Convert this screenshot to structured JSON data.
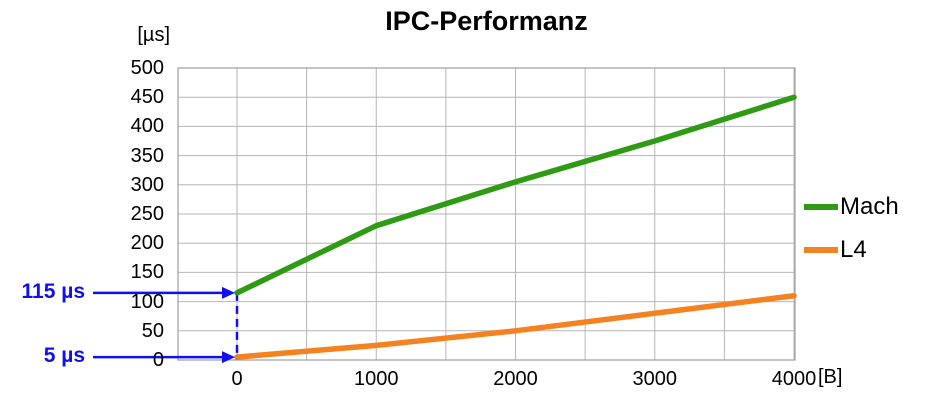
{
  "chart_data": {
    "type": "line",
    "title": "IPC-Performanz",
    "y_unit": "[µs]",
    "x_unit": "[B]",
    "x": [
      0,
      1000,
      2000,
      3000,
      4000
    ],
    "series": [
      {
        "name": "Mach",
        "color": "#2f9b14",
        "values": [
          115,
          230,
          305,
          375,
          450
        ]
      },
      {
        "name": "L4",
        "color": "#f58220",
        "values": [
          5,
          25,
          50,
          80,
          110
        ]
      }
    ],
    "ylim": [
      0,
      500
    ],
    "y_ticks": [
      0,
      50,
      100,
      150,
      200,
      250,
      300,
      350,
      400,
      450,
      500
    ],
    "x_ticks": [
      0,
      1000,
      2000,
      3000,
      4000
    ],
    "x_gridline_step": 500,
    "grid": true,
    "legend_position": "right",
    "annotation_color": "#1010ee",
    "annotations": [
      {
        "label": "115 µs",
        "y": 115
      },
      {
        "label": "5 µs",
        "y": 5
      }
    ]
  }
}
